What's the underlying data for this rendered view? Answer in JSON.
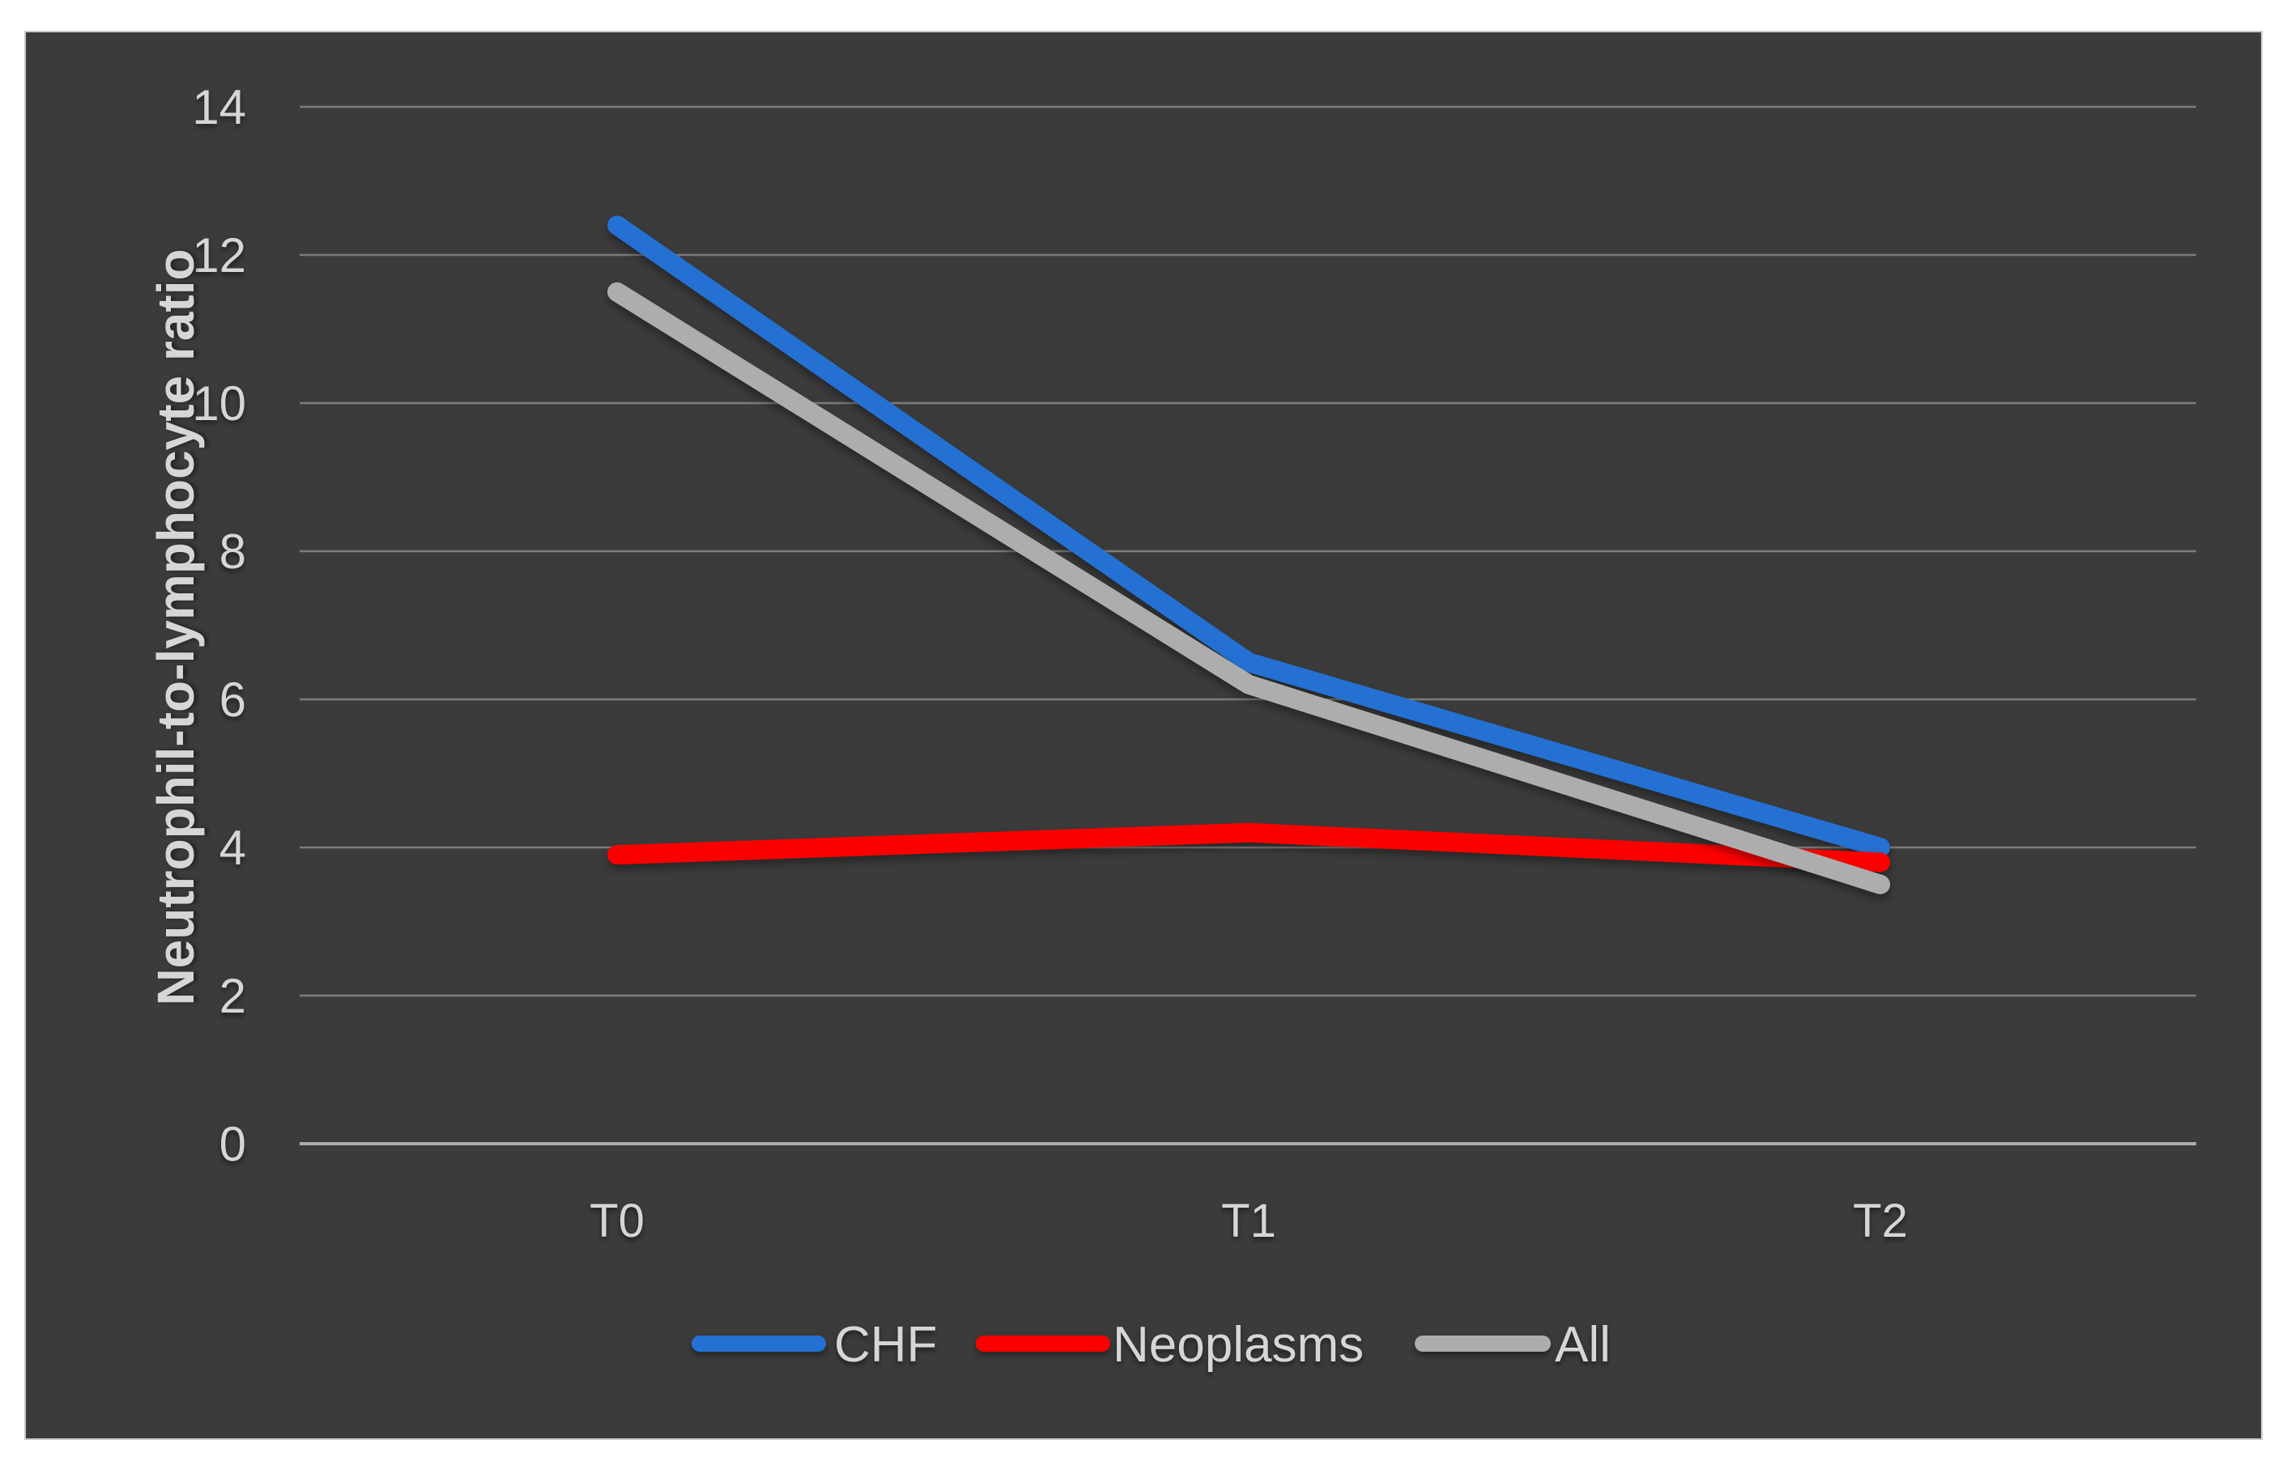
{
  "page": {
    "background": "#FFFFFF"
  },
  "panel": {
    "background": "#3B3B3B",
    "border_color": "#C9C9C9"
  },
  "chart_data": {
    "type": "line",
    "categories": [
      "T0",
      "T1",
      "T2"
    ],
    "series": [
      {
        "name": "CHF",
        "color": "#2471D3",
        "values": [
          12.4,
          6.5,
          4.0
        ]
      },
      {
        "name": "Neoplasms",
        "color": "#FC0000",
        "values": [
          3.9,
          4.2,
          3.8
        ]
      },
      {
        "name": "All",
        "color": "#ADADAD",
        "values": [
          11.5,
          6.2,
          3.5
        ]
      }
    ],
    "title": "",
    "xlabel": "",
    "ylabel": "Neutrophil-to-lymphocyte ratio",
    "ylim": [
      0,
      14
    ],
    "yticks": [
      0,
      2,
      4,
      6,
      8,
      10,
      12,
      14
    ],
    "grid": true,
    "legend_position": "bottom-center",
    "styles": {
      "gridline_color": "#7C7C7C",
      "axis_line_color": "#ACACAC",
      "tick_label_color": "#D6D6D6",
      "axis_title_color": "#D6D6D6",
      "legend_text_color": "#D6D6D6"
    }
  }
}
